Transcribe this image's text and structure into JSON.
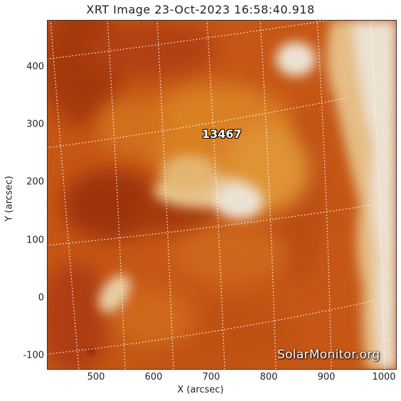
{
  "title": "XRT Image 23-Oct-2023 16:58:40.918",
  "x_axis_label": "X (arcsec)",
  "y_axis_label": "Y (arcsec)",
  "x_ticks": [
    "500",
    "600",
    "700",
    "800",
    "900",
    "1000"
  ],
  "y_ticks": [
    "400",
    "300",
    "200",
    "100",
    "0",
    "-100"
  ],
  "region_label": "13467",
  "watermark": "SolarMonitor.org",
  "colors": {
    "limb_bright": "#ffffff",
    "mid_orange": "#e07020",
    "dark_red": "#a02808",
    "grid": "#ffffff"
  },
  "icons": [
    "solar-disk-image",
    "heliographic-grid"
  ]
}
